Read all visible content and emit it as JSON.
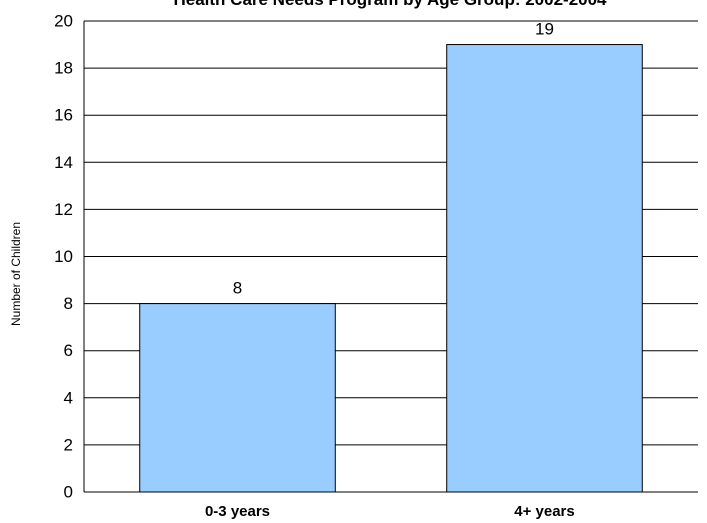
{
  "chart_data": {
    "type": "bar",
    "title": "Health Care Needs Program by Age Group: 2002-2004",
    "xlabel": "",
    "ylabel": "Number of Children",
    "categories": [
      "0-3 years",
      "4+ years"
    ],
    "values": [
      8,
      19
    ],
    "data_labels": [
      "8",
      "19"
    ],
    "ylim": [
      0,
      20
    ],
    "yticks": [
      "0",
      "2",
      "4",
      "6",
      "8",
      "10",
      "12",
      "14",
      "16",
      "18",
      "20"
    ],
    "grid": true,
    "bar_color": "#99ccff"
  }
}
